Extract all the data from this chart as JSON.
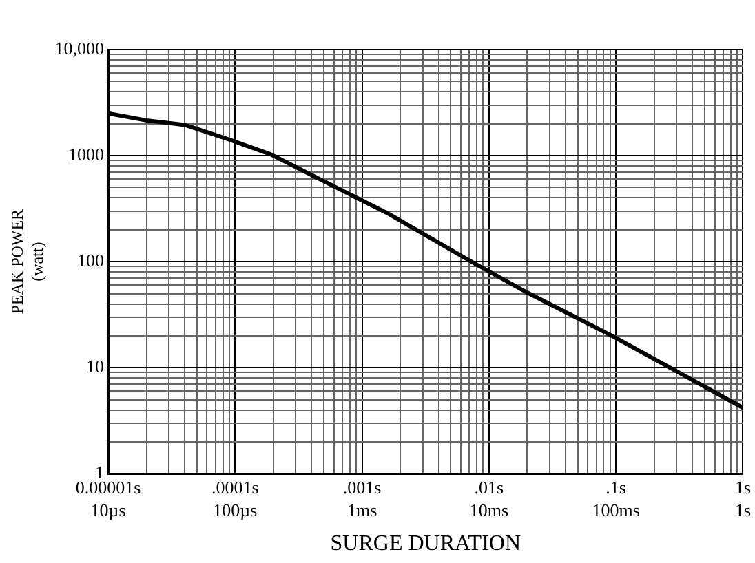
{
  "chart_data": {
    "type": "line",
    "xlabel": "SURGE DURATION",
    "ylabel": "PEAK POWER\n(watt)",
    "log": "xy",
    "grid": true,
    "legend": false,
    "marker": "none",
    "line_style": "solid",
    "xlim": [
      1e-05,
      1
    ],
    "ylim": [
      1,
      10000
    ],
    "xticks": [
      {
        "value": 1e-05,
        "label": "0.00001s"
      },
      {
        "value": 2e-05,
        "label": null
      },
      {
        "value": 3e-05,
        "label": null
      },
      {
        "value": 4e-05,
        "label": null
      },
      {
        "value": 5e-05,
        "label": null
      },
      {
        "value": 6e-05,
        "label": null
      },
      {
        "value": 7e-05,
        "label": null
      },
      {
        "value": 8e-05,
        "label": null
      },
      {
        "value": 9e-05,
        "label": null
      },
      {
        "value": 0.0001,
        "label": ".0001s"
      },
      {
        "value": 0.0002,
        "label": null
      },
      {
        "value": 0.0003,
        "label": null
      },
      {
        "value": 0.0004,
        "label": null
      },
      {
        "value": 0.0005,
        "label": null
      },
      {
        "value": 0.0006,
        "label": null
      },
      {
        "value": 0.0007,
        "label": null
      },
      {
        "value": 0.0008,
        "label": null
      },
      {
        "value": 0.0009,
        "label": null
      },
      {
        "value": 0.001,
        "label": ".001s"
      },
      {
        "value": 0.002,
        "label": null
      },
      {
        "value": 0.003,
        "label": null
      },
      {
        "value": 0.004,
        "label": null
      },
      {
        "value": 0.005,
        "label": null
      },
      {
        "value": 0.006,
        "label": null
      },
      {
        "value": 0.007,
        "label": null
      },
      {
        "value": 0.008,
        "label": null
      },
      {
        "value": 0.009,
        "label": null
      },
      {
        "value": 0.01,
        "label": ".01s"
      },
      {
        "value": 0.02,
        "label": null
      },
      {
        "value": 0.03,
        "label": null
      },
      {
        "value": 0.04,
        "label": null
      },
      {
        "value": 0.05,
        "label": null
      },
      {
        "value": 0.06,
        "label": null
      },
      {
        "value": 0.07,
        "label": null
      },
      {
        "value": 0.08,
        "label": null
      },
      {
        "value": 0.09,
        "label": null
      },
      {
        "value": 0.1,
        "label": ".1s"
      },
      {
        "value": 0.2,
        "label": null
      },
      {
        "value": 0.3,
        "label": null
      },
      {
        "value": 0.4,
        "label": null
      },
      {
        "value": 0.5,
        "label": null
      },
      {
        "value": 0.6,
        "label": null
      },
      {
        "value": 0.7,
        "label": null
      },
      {
        "value": 0.8,
        "label": null
      },
      {
        "value": 0.9,
        "label": null
      },
      {
        "value": 1,
        "label": "1s"
      }
    ],
    "annotations": [
      "10µs",
      "100µs",
      "1ms",
      "10ms",
      "100ms",
      "1s"
    ],
    "yticks": [
      1,
      {
        "value": 2,
        "label": null
      },
      {
        "value": 3,
        "label": null
      },
      {
        "value": 4,
        "label": null
      },
      {
        "value": 5,
        "label": null
      },
      {
        "value": 6,
        "label": null
      },
      {
        "value": 7,
        "label": null
      },
      {
        "value": 8,
        "label": null
      },
      {
        "value": 9,
        "label": null
      },
      10,
      {
        "value": 20,
        "label": null
      },
      {
        "value": 30,
        "label": null
      },
      {
        "value": 40,
        "label": null
      },
      {
        "value": 50,
        "label": null
      },
      {
        "value": 60,
        "label": null
      },
      {
        "value": 70,
        "label": null
      },
      {
        "value": 80,
        "label": null
      },
      {
        "value": 90,
        "label": null
      },
      100,
      {
        "value": 200,
        "label": null
      },
      {
        "value": 300,
        "label": null
      },
      {
        "value": 400,
        "label": null
      },
      {
        "value": 500,
        "label": null
      },
      {
        "value": 600,
        "label": null
      },
      {
        "value": 700,
        "label": null
      },
      {
        "value": 800,
        "label": null
      },
      {
        "value": 900,
        "label": null
      },
      1000,
      {
        "value": 2000,
        "label": null
      },
      {
        "value": 3000,
        "label": null
      },
      {
        "value": 4000,
        "label": null
      },
      {
        "value": 5000,
        "label": null
      },
      {
        "value": 6000,
        "label": null
      },
      {
        "value": 7000,
        "label": null
      },
      {
        "value": 8000,
        "label": null
      },
      {
        "value": 9000,
        "label": null
      },
      {
        "value": 10000,
        "label": "10,000"
      }
    ],
    "series": [
      {
        "color": "#000000",
        "x": [
          1e-05,
          2e-05,
          4e-05,
          8.5e-05,
          0.00019,
          0.00052,
          0.00087,
          0.0016,
          0.0076,
          0.0195,
          0.093,
          1
        ],
        "values": [
          2500,
          2150,
          1950,
          1450,
          1030,
          560,
          410,
          285,
          97,
          52,
          20,
          4.2
        ]
      }
    ]
  }
}
